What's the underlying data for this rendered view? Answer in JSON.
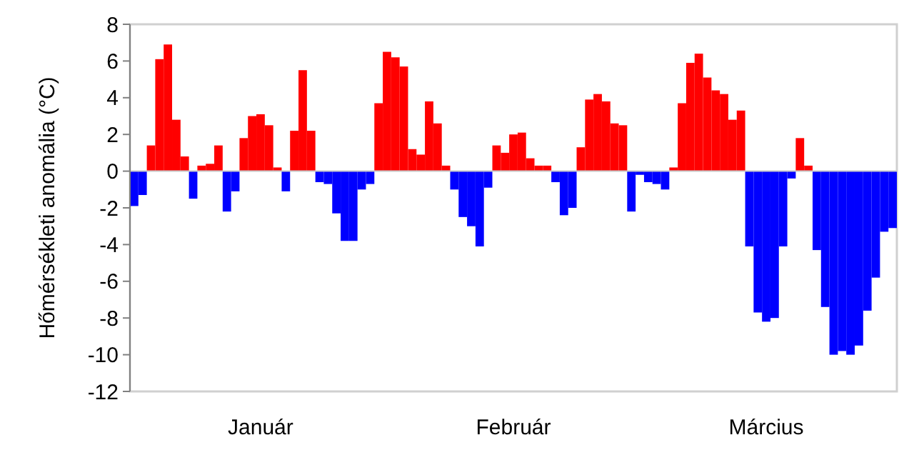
{
  "chart_data": {
    "type": "bar",
    "ylabel": "Hőmérsékleti anomália (°C)",
    "categories": [
      null,
      null,
      null,
      null,
      null,
      null,
      null,
      null,
      null,
      null,
      null,
      null,
      null,
      null,
      null,
      "Január",
      null,
      null,
      null,
      null,
      null,
      null,
      null,
      null,
      null,
      null,
      null,
      null,
      null,
      null,
      null,
      null,
      null,
      null,
      null,
      null,
      null,
      null,
      null,
      null,
      null,
      null,
      null,
      null,
      null,
      "Február",
      null,
      null,
      null,
      null,
      null,
      null,
      null,
      null,
      null,
      null,
      null,
      null,
      null,
      null,
      null,
      null,
      null,
      null,
      null,
      null,
      null,
      null,
      null,
      null,
      null,
      null,
      null,
      null,
      null,
      "Március",
      null,
      null,
      null,
      null,
      null,
      null,
      null,
      null,
      null,
      null,
      null,
      null,
      null,
      null,
      null
    ],
    "values": [
      -1.9,
      -1.3,
      1.4,
      6.1,
      6.9,
      2.8,
      0.8,
      -1.5,
      0.3,
      0.4,
      1.4,
      -2.2,
      -1.1,
      1.8,
      3.0,
      3.1,
      2.5,
      0.2,
      -1.1,
      2.2,
      5.5,
      2.2,
      -0.6,
      -0.7,
      -2.3,
      -3.8,
      -3.8,
      -1.0,
      -0.7,
      3.7,
      6.5,
      6.2,
      5.7,
      1.2,
      0.9,
      3.8,
      2.6,
      0.3,
      -1.0,
      -2.5,
      -3.0,
      -4.1,
      -0.9,
      1.4,
      1.0,
      2.0,
      2.1,
      0.7,
      0.3,
      0.3,
      -0.6,
      -2.4,
      -2.0,
      1.3,
      3.9,
      4.2,
      3.8,
      2.6,
      2.5,
      -2.2,
      -0.2,
      -0.6,
      -0.7,
      -1.0,
      0.2,
      3.7,
      5.9,
      6.4,
      5.1,
      4.4,
      4.2,
      2.8,
      3.3,
      -4.1,
      -7.7,
      -8.2,
      -8.0,
      -4.1,
      -0.4,
      1.8,
      0.3,
      -4.3,
      -7.4,
      -10.0,
      -9.8,
      -10.0,
      -9.5,
      -7.6,
      -5.8,
      -3.3,
      -3.1
    ],
    "colors": [
      "#0000ff",
      "#0000ff",
      "#ff0000",
      "#ff0000",
      "#ff0000",
      "#ff0000",
      "#ff0000",
      "#0000ff",
      "#ff0000",
      "#ff0000",
      "#ff0000",
      "#0000ff",
      "#0000ff",
      "#ff0000",
      "#ff0000",
      "#ff0000",
      "#ff0000",
      "#ff0000",
      "#0000ff",
      "#ff0000",
      "#ff0000",
      "#ff0000",
      "#0000ff",
      "#0000ff",
      "#0000ff",
      "#0000ff",
      "#0000ff",
      "#0000ff",
      "#0000ff",
      "#ff0000",
      "#ff0000",
      "#ff0000",
      "#ff0000",
      "#ff0000",
      "#ff0000",
      "#ff0000",
      "#ff0000",
      "#ff0000",
      "#0000ff",
      "#0000ff",
      "#0000ff",
      "#0000ff",
      "#0000ff",
      "#ff0000",
      "#ff0000",
      "#ff0000",
      "#ff0000",
      "#ff0000",
      "#ff0000",
      "#ff0000",
      "#0000ff",
      "#0000ff",
      "#0000ff",
      "#ff0000",
      "#ff0000",
      "#ff0000",
      "#ff0000",
      "#ff0000",
      "#ff0000",
      "#0000ff",
      "#0000ff",
      "#0000ff",
      "#0000ff",
      "#0000ff",
      "#ff0000",
      "#ff0000",
      "#ff0000",
      "#ff0000",
      "#ff0000",
      "#ff0000",
      "#ff0000",
      "#ff0000",
      "#ff0000",
      "#0000ff",
      "#0000ff",
      "#0000ff",
      "#0000ff",
      "#0000ff",
      "#0000ff",
      "#ff0000",
      "#ff0000",
      "#0000ff",
      "#0000ff",
      "#0000ff",
      "#0000ff",
      "#0000ff",
      "#0000ff",
      "#0000ff",
      "#0000ff",
      "#0000ff",
      "#0000ff"
    ],
    "ylim": [
      -12,
      8
    ],
    "yticks": [
      -12,
      -10,
      -8,
      -6,
      -4,
      -2,
      0,
      2,
      4,
      6,
      8
    ]
  }
}
